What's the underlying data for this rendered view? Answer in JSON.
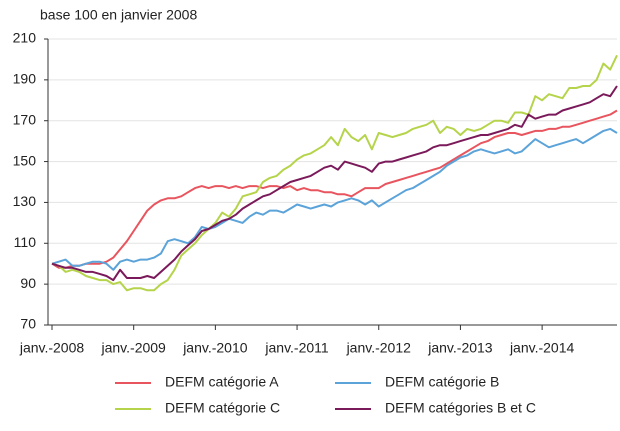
{
  "chart_data": {
    "type": "line",
    "ylabel": "base 100 en janvier 2008",
    "x": [
      "janv.-2008",
      null,
      null,
      null,
      null,
      null,
      null,
      null,
      null,
      null,
      null,
      null,
      "janv.-2009",
      null,
      null,
      null,
      null,
      null,
      null,
      null,
      null,
      null,
      null,
      null,
      "janv.-2010",
      null,
      null,
      null,
      null,
      null,
      null,
      null,
      null,
      null,
      null,
      null,
      "janv.-2011",
      null,
      null,
      null,
      null,
      null,
      null,
      null,
      null,
      null,
      null,
      null,
      "janv.-2012",
      null,
      null,
      null,
      null,
      null,
      null,
      null,
      null,
      null,
      null,
      null,
      "janv.-2013",
      null,
      null,
      null,
      null,
      null,
      null,
      null,
      null,
      null,
      null,
      null,
      "janv.-2014",
      null,
      null,
      null,
      null,
      null,
      null,
      null,
      null,
      null,
      null,
      null
    ],
    "ylim": [
      70,
      210
    ],
    "yticks": [
      70,
      90,
      110,
      130,
      150,
      170,
      190,
      210
    ],
    "grid": true,
    "series": [
      {
        "name": "DEFM catégorie A",
        "color": "#e8555f",
        "values": [
          100,
          98,
          98,
          99,
          99,
          100,
          100,
          100,
          101,
          103,
          107,
          111,
          116,
          121,
          126,
          129,
          131,
          132,
          132,
          133,
          135,
          137,
          138,
          137,
          138,
          138,
          137,
          138,
          137,
          138,
          138,
          137,
          138,
          138,
          137,
          138,
          136,
          137,
          136,
          136,
          135,
          135,
          134,
          134,
          133,
          135,
          137,
          137,
          137,
          139,
          140,
          141,
          142,
          143,
          144,
          145,
          146,
          147,
          149,
          151,
          153,
          155,
          157,
          159,
          160,
          162,
          163,
          164,
          164,
          163,
          164,
          165,
          165,
          166,
          166,
          167,
          167,
          168,
          169,
          170,
          171,
          172,
          173,
          175
        ]
      },
      {
        "name": "DEFM catégorie B",
        "color": "#5ba3d9",
        "values": [
          100,
          101,
          102,
          99,
          99,
          100,
          101,
          101,
          100,
          97,
          101,
          102,
          101,
          102,
          102,
          103,
          105,
          111,
          112,
          111,
          110,
          113,
          118,
          117,
          118,
          120,
          122,
          121,
          120,
          123,
          125,
          124,
          126,
          126,
          125,
          127,
          129,
          128,
          127,
          128,
          129,
          128,
          130,
          131,
          132,
          131,
          129,
          131,
          128,
          130,
          132,
          134,
          136,
          137,
          139,
          141,
          143,
          145,
          148,
          150,
          152,
          153,
          155,
          156,
          155,
          154,
          155,
          156,
          154,
          155,
          158,
          161,
          159,
          157,
          158,
          159,
          160,
          161,
          159,
          161,
          163,
          165,
          166,
          164
        ]
      },
      {
        "name": "DEFM catégorie C",
        "color": "#b5d44b",
        "values": [
          100,
          99,
          96,
          97,
          96,
          94,
          93,
          92,
          92,
          90,
          91,
          87,
          88,
          88,
          87,
          87,
          90,
          92,
          97,
          104,
          107,
          110,
          114,
          117,
          120,
          125,
          123,
          127,
          133,
          134,
          135,
          140,
          142,
          143,
          146,
          148,
          151,
          153,
          154,
          156,
          158,
          162,
          158,
          166,
          162,
          160,
          163,
          156,
          164,
          163,
          162,
          163,
          164,
          166,
          167,
          168,
          170,
          164,
          167,
          166,
          163,
          166,
          165,
          166,
          168,
          170,
          170,
          169,
          174,
          174,
          173,
          182,
          180,
          183,
          182,
          181,
          186,
          186,
          187,
          187,
          190,
          198,
          195,
          202
        ]
      },
      {
        "name": "DEFM catégories B et C",
        "color": "#7b1a5a",
        "values": [
          100,
          99,
          98,
          98,
          97,
          96,
          96,
          95,
          94,
          92,
          97,
          93,
          93,
          93,
          94,
          93,
          96,
          99,
          102,
          106,
          109,
          112,
          116,
          117,
          119,
          121,
          122,
          124,
          127,
          129,
          131,
          133,
          134,
          136,
          138,
          140,
          141,
          142,
          143,
          145,
          147,
          148,
          146,
          150,
          149,
          148,
          147,
          145,
          149,
          150,
          150,
          151,
          152,
          153,
          154,
          155,
          157,
          158,
          158,
          159,
          160,
          161,
          162,
          163,
          163,
          164,
          165,
          166,
          168,
          167,
          173,
          171,
          172,
          173,
          173,
          175,
          176,
          177,
          178,
          179,
          181,
          183,
          182,
          187
        ]
      }
    ]
  }
}
